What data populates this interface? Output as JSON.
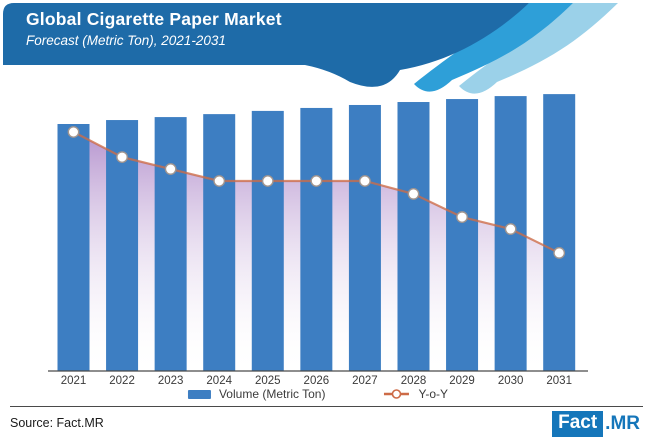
{
  "header": {
    "title": "Global Cigarette Paper Market",
    "subtitle": "Forecast (Metric Ton), 2021-2031"
  },
  "colors": {
    "header_blue": "#1E6BA8",
    "ribbon_mid": "#2E9FD8",
    "ribbon_light": "#9BD1E9",
    "bar": "#3D7EC2",
    "line": "#CD6B47",
    "marker_ring": "#A1958F",
    "area_top": "#A982C6",
    "area_bottom": "#FFFFFF",
    "axis": "#4A4A4A",
    "logo_blue": "#1576BA"
  },
  "chart_data": {
    "type": "bar+line combo",
    "title": "Global Cigarette Paper Market",
    "subtitle": "Forecast (Metric Ton), 2021-2031",
    "categories": [
      "2021",
      "2022",
      "2023",
      "2024",
      "2025",
      "2026",
      "2027",
      "2028",
      "2029",
      "2030",
      "2031"
    ],
    "series": [
      {
        "name": "Volume (Metric Ton)",
        "type": "bar",
        "values_index_2021_100": [
          100,
          101.6,
          102.8,
          104.0,
          105.3,
          106.5,
          107.7,
          108.9,
          110.1,
          111.3,
          112.1
        ],
        "note": "No numeric y-axis shown; values are relative bar heights with 2021 = 100 (steady growth each year)"
      },
      {
        "name": "Y-o-Y",
        "type": "line",
        "values_index_2021_100": [
          100,
          89.5,
          84.5,
          79.5,
          79.5,
          79.5,
          79.5,
          74.1,
          64.4,
          59.4,
          49.4
        ],
        "note": "No numeric y-axis shown; values are relative line heights with 2021 = 100 (declining, flat 2024-2027, then declining)"
      }
    ],
    "xlabel": "",
    "ylabel": "",
    "y_axis_labels_visible": false,
    "gridlines": false,
    "legend_position": "bottom-center"
  },
  "legend": {
    "volume_label": "Volume (Metric Ton)",
    "yoy_label": "Y-o-Y"
  },
  "footer": {
    "source": "Source: Fact.MR",
    "logo_fact": "Fact",
    "logo_mr": ".MR"
  }
}
